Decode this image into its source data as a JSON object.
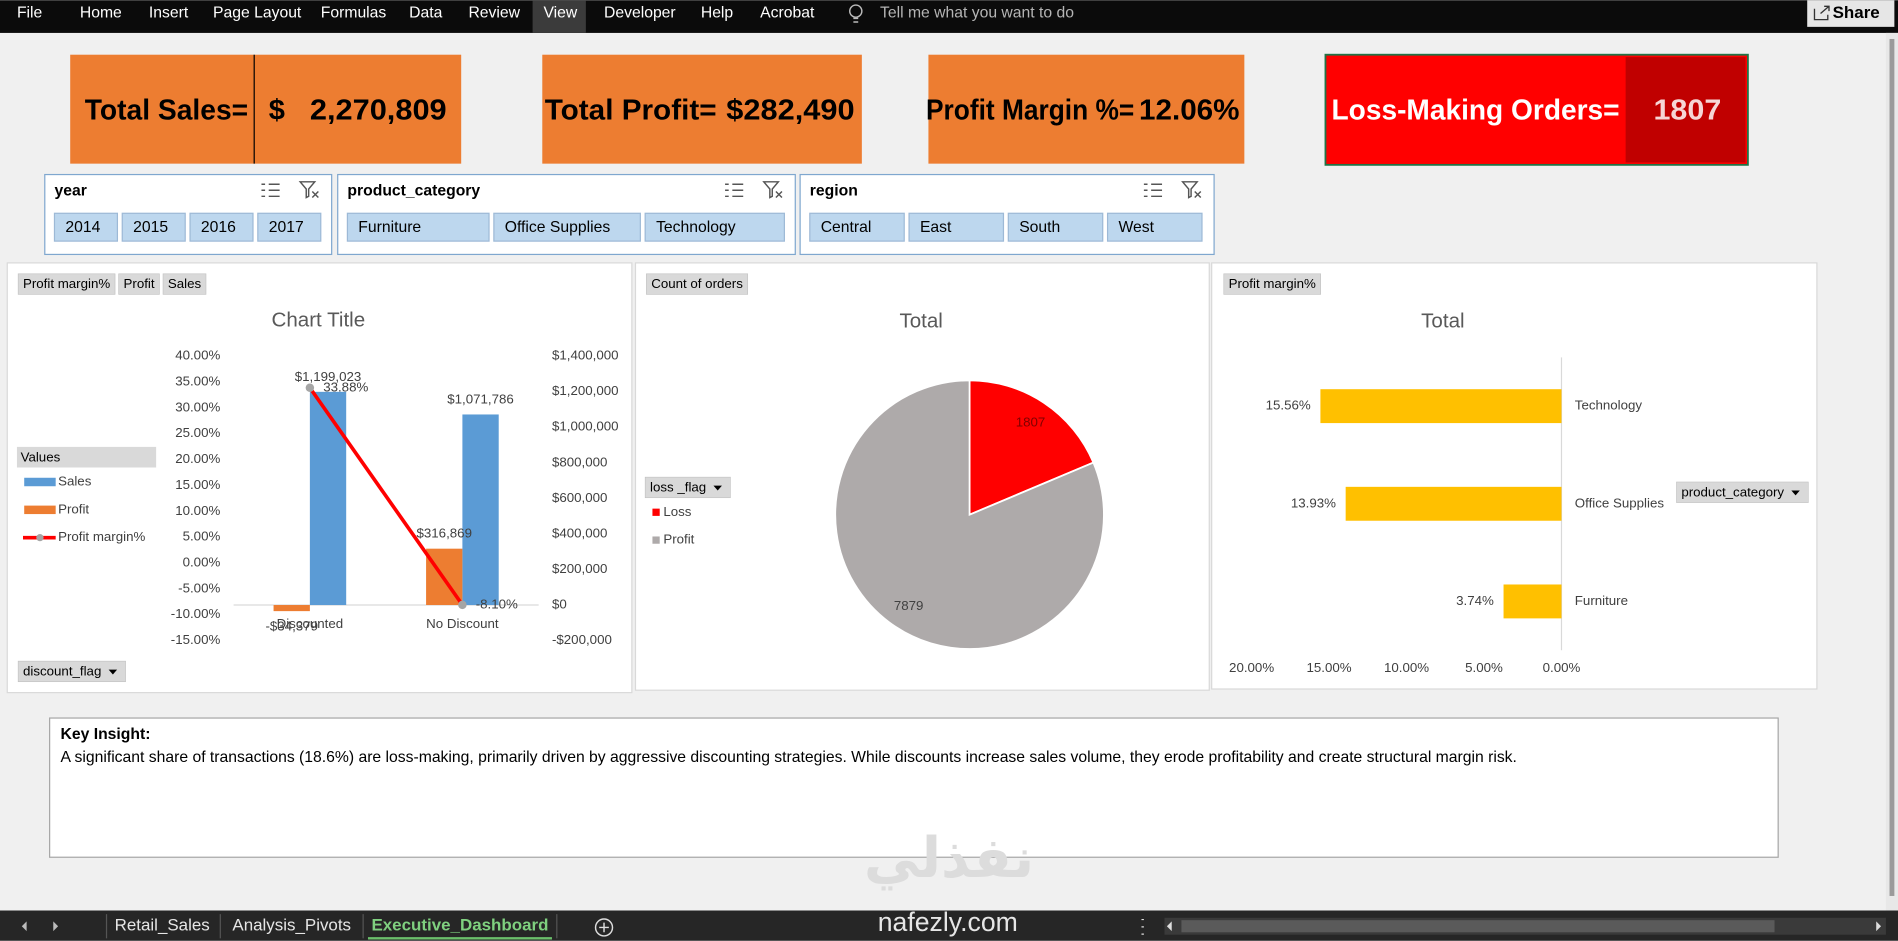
{
  "menu": {
    "tabs": [
      "File",
      "Home",
      "Insert",
      "Page Layout",
      "Formulas",
      "Data",
      "Review",
      "View",
      "Developer",
      "Help",
      "Acrobat"
    ],
    "search": "Tell me what you want to do",
    "share": "Share"
  },
  "kpis": [
    {
      "label": "Total Sales=",
      "currency": "$",
      "value": "2,270,809"
    },
    {
      "label": "Total Profit=",
      "value": "$282,490"
    },
    {
      "label": "Profit Margin %=",
      "value": "12.06%"
    },
    {
      "label": "Loss-Making Orders=",
      "value": "1807"
    }
  ],
  "slicers": [
    {
      "title": "year",
      "items": [
        "2014",
        "2015",
        "2016",
        "2017"
      ]
    },
    {
      "title": "product_category",
      "items": [
        "Furniture",
        "Office Supplies",
        "Technology"
      ]
    },
    {
      "title": "region",
      "items": [
        "Central",
        "East",
        "South",
        "West"
      ]
    }
  ],
  "chart_data": [
    {
      "type": "bar",
      "title": "Chart Title",
      "field_buttons": [
        "Profit margin%",
        "Profit",
        "Sales"
      ],
      "legend_title": "Values",
      "filter_button": "discount_flag",
      "categories": [
        "Discounted",
        "No Discount"
      ],
      "series": [
        {
          "name": "Sales",
          "color": "#5b9bd5",
          "axis": "y2",
          "values": [
            1199023,
            1071786
          ],
          "value_labels": [
            "$1,199,023",
            "$1,071,786"
          ]
        },
        {
          "name": "Profit",
          "color": "#ed7d31",
          "axis": "y2",
          "values": [
            -34379,
            316869
          ],
          "value_labels": [
            "-$34,379",
            "$316,869"
          ]
        },
        {
          "name": "Profit margin%",
          "color": "#ff0000",
          "type": "line",
          "values": [
            33.88,
            -8.1
          ],
          "value_labels": [
            "33.88%",
            "-8.10%"
          ]
        }
      ],
      "ylim": [
        -15,
        40
      ],
      "yticks": [
        {
          "value": -15,
          "label": "-15.00%"
        },
        {
          "value": -10,
          "label": "-10.00%"
        },
        {
          "value": -5,
          "label": "-5.00%"
        },
        {
          "value": 0,
          "label": "0.00%"
        },
        {
          "value": 5,
          "label": "5.00%"
        },
        {
          "value": 10,
          "label": "10.00%"
        },
        {
          "value": 15,
          "label": "15.00%"
        },
        {
          "value": 20,
          "label": "20.00%"
        },
        {
          "value": 25,
          "label": "25.00%"
        },
        {
          "value": 30,
          "label": "30.00%"
        },
        {
          "value": 35,
          "label": "35.00%"
        },
        {
          "value": 40,
          "label": "40.00%"
        }
      ],
      "y2lim": [
        -200000,
        1400000
      ],
      "y2ticks": [
        {
          "value": -200000,
          "label": "-$200,000"
        },
        {
          "value": 0,
          "label": "$0"
        },
        {
          "value": 200000,
          "label": "$200,000"
        },
        {
          "value": 400000,
          "label": "$400,000"
        },
        {
          "value": 600000,
          "label": "$600,000"
        },
        {
          "value": 800000,
          "label": "$800,000"
        },
        {
          "value": 1000000,
          "label": "$1,000,000"
        },
        {
          "value": 1200000,
          "label": "$1,200,000"
        },
        {
          "value": 1400000,
          "label": "$1,400,000"
        }
      ]
    },
    {
      "type": "pie",
      "title": "Total",
      "field_buttons": [
        "Count of orders"
      ],
      "filter_button": "loss _flag",
      "categories": [
        "Loss",
        "Profit"
      ],
      "values": [
        1807,
        7879
      ],
      "colors": [
        "#ff0000",
        "#aeaaaa"
      ]
    },
    {
      "type": "barh",
      "title": "Total",
      "field_buttons": [
        "Profit margin%"
      ],
      "filter_button": "product_category",
      "categories": [
        "Furniture",
        "Office Supplies",
        "Technology"
      ],
      "values": [
        3.74,
        13.93,
        15.56
      ],
      "value_labels": [
        "3.74%",
        "13.93%",
        "15.56%"
      ],
      "color": "#ffc000",
      "xlim": [
        20,
        0
      ],
      "xticks": [
        {
          "value": 20,
          "label": "20.00%"
        },
        {
          "value": 15,
          "label": "15.00%"
        },
        {
          "value": 10,
          "label": "10.00%"
        },
        {
          "value": 5,
          "label": "5.00%"
        },
        {
          "value": 0,
          "label": "0.00%"
        }
      ]
    }
  ],
  "insight": {
    "title": "Key Insight:",
    "text": "A significant share of transactions (18.6%) are loss-making, primarily driven by aggressive discounting strategies. While discounts increase sales volume, they erode profitability and create structural margin risk."
  },
  "watermark": {
    "logo": "نفذلي",
    "site": "nafezly.com"
  },
  "sheet_tabs": {
    "tabs": [
      "Retail_Sales",
      "Analysis_Pivots",
      "Executive_Dashboard"
    ],
    "active": 2
  }
}
